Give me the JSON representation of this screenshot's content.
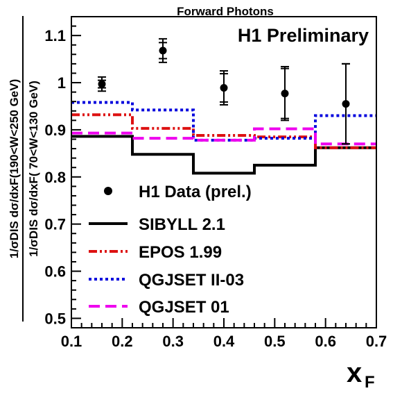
{
  "chart_data": {
    "type": "line",
    "title": "Forward Photons",
    "annotation": "H1 Preliminary",
    "xlabel": "x",
    "xlabel_sub": "F",
    "ylabel_numerator": "1/σDIS dσ/dxF(190<W<250 GeV)",
    "ylabel_denominator": "1/σDIS dσ/dxF( 70<W<130 GeV)",
    "xlim": [
      0.1,
      0.7
    ],
    "ylim": [
      0.48,
      1.14
    ],
    "xticks": [
      0.1,
      0.2,
      0.3,
      0.4,
      0.5,
      0.6,
      0.7
    ],
    "xtick_labels": [
      "0.1",
      "0.2",
      "0.3",
      "0.4",
      "0.5",
      "0.6",
      "0.7"
    ],
    "yticks": [
      0.5,
      0.6,
      0.7,
      0.8,
      0.9,
      1.0,
      1.1
    ],
    "ytick_labels": [
      "0.5",
      "0.6",
      "0.7",
      "0.8",
      "0.9",
      "1",
      "1.1"
    ],
    "legend_position": "bottom-left",
    "bin_edges": [
      0.1,
      0.22,
      0.34,
      0.46,
      0.58,
      0.7
    ],
    "data_points": {
      "name": "H1 Data (prel.)",
      "x": [
        0.16,
        0.28,
        0.4,
        0.52,
        0.64
      ],
      "y": [
        0.997,
        1.068,
        0.989,
        0.977,
        0.955
      ],
      "err_total": [
        0.015,
        0.025,
        0.036,
        0.057,
        0.085
      ],
      "err_stat": [
        0.008,
        0.017,
        0.03,
        0.053,
        0.085
      ],
      "color": "#000000"
    },
    "series": [
      {
        "name": "SIBYLL 2.1",
        "color": "#000000",
        "dash": "solid",
        "values": [
          0.886,
          0.848,
          0.808,
          0.825,
          0.862
        ]
      },
      {
        "name": "EPOS 1.99",
        "color": "#dd1111",
        "dash": "dashdot",
        "values": [
          0.932,
          0.903,
          0.888,
          0.885,
          0.862
        ]
      },
      {
        "name": "QGJSET II-03",
        "color": "#0000dd",
        "dash": "dot",
        "values": [
          0.958,
          0.942,
          0.878,
          0.882,
          0.93
        ]
      },
      {
        "name": "QGJSET 01",
        "color": "#ee00ee",
        "dash": "dash",
        "values": [
          0.893,
          0.882,
          0.878,
          0.902,
          0.87
        ]
      }
    ]
  }
}
